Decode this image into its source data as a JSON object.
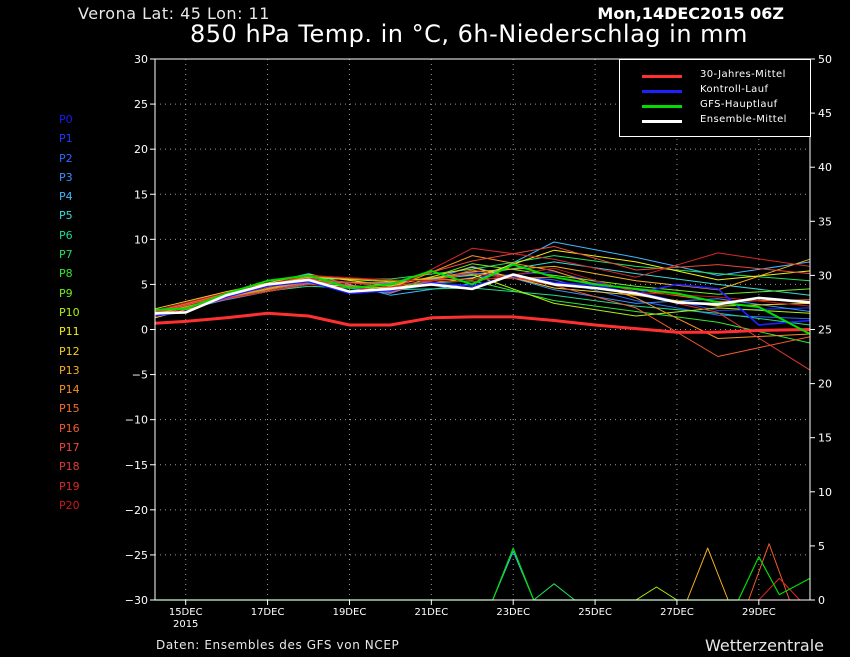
{
  "header": {
    "station": "Verona   Lat: 45 Lon: 11",
    "datestamp": "Mon,14DEC2015 06Z",
    "title": "850 hPa Temp. in °C, 6h-Niederschlag in mm"
  },
  "footer": {
    "source": "Daten: Ensembles des GFS von NCEP",
    "brand": "Wetterzentrale"
  },
  "members": [
    {
      "label": "P0",
      "color": "#1a1aff"
    },
    {
      "label": "P1",
      "color": "#1f3dff"
    },
    {
      "label": "P2",
      "color": "#2a6aff"
    },
    {
      "label": "P3",
      "color": "#3a90ff"
    },
    {
      "label": "P4",
      "color": "#40b8ff"
    },
    {
      "label": "P5",
      "color": "#3ad8d8"
    },
    {
      "label": "P6",
      "color": "#24d890"
    },
    {
      "label": "P7",
      "color": "#22e060"
    },
    {
      "label": "P8",
      "color": "#30e830"
    },
    {
      "label": "P9",
      "color": "#70ee20"
    },
    {
      "label": "P10",
      "color": "#b0f010"
    },
    {
      "label": "P11",
      "color": "#f0f010"
    },
    {
      "label": "P12",
      "color": "#f5d020"
    },
    {
      "label": "P13",
      "color": "#f5b020"
    },
    {
      "label": "P14",
      "color": "#f59020"
    },
    {
      "label": "P15",
      "color": "#f57028"
    },
    {
      "label": "P16",
      "color": "#f05a30"
    },
    {
      "label": "P17",
      "color": "#e84838"
    },
    {
      "label": "P18",
      "color": "#e03838"
    },
    {
      "label": "P19",
      "color": "#d82828"
    },
    {
      "label": "P20",
      "color": "#c81818"
    }
  ],
  "legend": [
    {
      "label": "30-Jahres-Mittel",
      "color": "#ff3030"
    },
    {
      "label": "Kontroll-Lauf",
      "color": "#2020ff"
    },
    {
      "label": "GFS-Hauptlauf",
      "color": "#00dd00"
    },
    {
      "label": "Ensemble-Mittel",
      "color": "#ffffff"
    }
  ],
  "chart_data": {
    "type": "line",
    "y_left": {
      "min": -30,
      "max": 30,
      "ticks": [
        30,
        25,
        20,
        15,
        10,
        5,
        0,
        -5,
        -10,
        -15,
        -20,
        -25,
        -30
      ]
    },
    "y_right": {
      "min": 0,
      "max": 50,
      "ticks": [
        50,
        45,
        40,
        35,
        30,
        25,
        20,
        15,
        10,
        5,
        0
      ]
    },
    "x_ticks": [
      {
        "label": "15DEC",
        "sub": "2015",
        "day": 15
      },
      {
        "label": "17DEC",
        "day": 17
      },
      {
        "label": "19DEC",
        "day": 19
      },
      {
        "label": "21DEC",
        "day": 21
      },
      {
        "label": "23DEC",
        "day": 23
      },
      {
        "label": "25DEC",
        "day": 25
      },
      {
        "label": "27DEC",
        "day": 27
      },
      {
        "label": "29DEC",
        "day": 29
      }
    ],
    "x_range_days": [
      14.25,
      30.25
    ],
    "grid": true,
    "legend_position": "top-right",
    "temperature": {
      "climate_mean": [
        [
          14.25,
          0.7
        ],
        [
          15,
          0.9
        ],
        [
          16,
          1.3
        ],
        [
          17,
          1.8
        ],
        [
          18,
          1.5
        ],
        [
          19,
          0.5
        ],
        [
          20,
          0.5
        ],
        [
          21,
          1.3
        ],
        [
          22,
          1.4
        ],
        [
          23,
          1.4
        ],
        [
          24,
          1.0
        ],
        [
          25,
          0.5
        ],
        [
          26,
          0.1
        ],
        [
          27,
          -0.3
        ],
        [
          28,
          -0.3
        ],
        [
          29,
          -0.1
        ],
        [
          30.25,
          0.0
        ]
      ],
      "ensemble_mean": [
        [
          14.25,
          1.8
        ],
        [
          15,
          1.9
        ],
        [
          16,
          3.8
        ],
        [
          17,
          5.0
        ],
        [
          18,
          5.5
        ],
        [
          19,
          4.2
        ],
        [
          20,
          4.5
        ],
        [
          21,
          5.0
        ],
        [
          22,
          4.5
        ],
        [
          23,
          6.1
        ],
        [
          24,
          5.0
        ],
        [
          25,
          4.6
        ],
        [
          26,
          4.0
        ],
        [
          27,
          3.0
        ],
        [
          28,
          2.8
        ],
        [
          29,
          3.5
        ],
        [
          30.25,
          3.0
        ]
      ],
      "control_run": [
        [
          14.25,
          1.5
        ],
        [
          15,
          2.0
        ],
        [
          16,
          3.6
        ],
        [
          17,
          4.8
        ],
        [
          18,
          5.3
        ],
        [
          19,
          4.0
        ],
        [
          20,
          4.3
        ],
        [
          21,
          5.2
        ],
        [
          22,
          4.8
        ],
        [
          23,
          6.0
        ],
        [
          24,
          5.2
        ],
        [
          25,
          4.9
        ],
        [
          26,
          4.0
        ],
        [
          27,
          5.0
        ],
        [
          28,
          4.5
        ],
        [
          29,
          0.5
        ],
        [
          30.25,
          1.0
        ]
      ],
      "gfs_main": [
        [
          14.25,
          2.2
        ],
        [
          15,
          2.3
        ],
        [
          16,
          4.0
        ],
        [
          17,
          5.4
        ],
        [
          18,
          6.0
        ],
        [
          19,
          4.6
        ],
        [
          20,
          5.0
        ],
        [
          21,
          6.5
        ],
        [
          22,
          5.0
        ],
        [
          23,
          7.2
        ],
        [
          24,
          5.8
        ],
        [
          25,
          5.0
        ],
        [
          26,
          4.5
        ],
        [
          27,
          4.0
        ],
        [
          28,
          3.0
        ],
        [
          29,
          2.5
        ],
        [
          30.25,
          -0.5
        ]
      ],
      "members": [
        [
          [
            14.25,
            1.6
          ],
          [
            16,
            3.5
          ],
          [
            18,
            5.3
          ],
          [
            20,
            4.2
          ],
          [
            22,
            5.8
          ],
          [
            24,
            6.4
          ],
          [
            26,
            4.2
          ],
          [
            28,
            2.1
          ],
          [
            30.25,
            2.4
          ]
        ],
        [
          [
            14.25,
            1.9
          ],
          [
            16,
            3.9
          ],
          [
            18,
            5.7
          ],
          [
            20,
            4.7
          ],
          [
            22,
            6.3
          ],
          [
            24,
            5.5
          ],
          [
            26,
            3.2
          ],
          [
            28,
            1.6
          ],
          [
            30.25,
            1.2
          ]
        ],
        [
          [
            14.25,
            1.4
          ],
          [
            16,
            3.3
          ],
          [
            18,
            5.1
          ],
          [
            20,
            4.0
          ],
          [
            22,
            7.0
          ],
          [
            24,
            4.4
          ],
          [
            26,
            2.9
          ],
          [
            28,
            3.4
          ],
          [
            30.25,
            2.0
          ]
        ],
        [
          [
            14.25,
            2.1
          ],
          [
            16,
            4.1
          ],
          [
            18,
            6.2
          ],
          [
            20,
            3.8
          ],
          [
            22,
            5.1
          ],
          [
            24,
            9.7
          ],
          [
            26,
            8.0
          ],
          [
            28,
            6.0
          ],
          [
            30.25,
            7.5
          ]
        ],
        [
          [
            14.25,
            1.7
          ],
          [
            16,
            3.6
          ],
          [
            18,
            5.2
          ],
          [
            20,
            5.2
          ],
          [
            22,
            6.0
          ],
          [
            24,
            7.5
          ],
          [
            26,
            6.2
          ],
          [
            28,
            5.0
          ],
          [
            30.25,
            3.8
          ]
        ],
        [
          [
            14.25,
            1.5
          ],
          [
            16,
            3.7
          ],
          [
            18,
            4.8
          ],
          [
            20,
            4.4
          ],
          [
            22,
            4.6
          ],
          [
            24,
            3.8
          ],
          [
            26,
            2.6
          ],
          [
            28,
            1.8
          ],
          [
            30.25,
            0.5
          ]
        ],
        [
          [
            14.25,
            2.0
          ],
          [
            16,
            3.8
          ],
          [
            18,
            5.6
          ],
          [
            20,
            5.6
          ],
          [
            22,
            6.7
          ],
          [
            24,
            8.2
          ],
          [
            26,
            7.0
          ],
          [
            28,
            6.2
          ],
          [
            30.25,
            5.4
          ]
        ],
        [
          [
            14.25,
            1.8
          ],
          [
            16,
            4.0
          ],
          [
            18,
            6.0
          ],
          [
            20,
            4.9
          ],
          [
            22,
            5.4
          ],
          [
            24,
            3.2
          ],
          [
            26,
            2.0
          ],
          [
            28,
            0.8
          ],
          [
            30.25,
            -1.5
          ]
        ],
        [
          [
            14.25,
            1.6
          ],
          [
            16,
            3.5
          ],
          [
            18,
            5.4
          ],
          [
            20,
            4.3
          ],
          [
            22,
            7.3
          ],
          [
            24,
            6.0
          ],
          [
            26,
            4.8
          ],
          [
            28,
            3.9
          ],
          [
            30.25,
            4.5
          ]
        ],
        [
          [
            14.25,
            1.9
          ],
          [
            16,
            3.9
          ],
          [
            18,
            5.8
          ],
          [
            20,
            5.3
          ],
          [
            22,
            6.1
          ],
          [
            24,
            2.9
          ],
          [
            26,
            1.5
          ],
          [
            28,
            2.4
          ],
          [
            30.25,
            1.8
          ]
        ],
        [
          [
            14.25,
            1.3
          ],
          [
            16,
            3.4
          ],
          [
            18,
            5.0
          ],
          [
            20,
            4.6
          ],
          [
            22,
            5.7
          ],
          [
            24,
            8.8
          ],
          [
            26,
            7.5
          ],
          [
            28,
            5.5
          ],
          [
            30.25,
            6.5
          ]
        ],
        [
          [
            14.25,
            2.3
          ],
          [
            16,
            4.2
          ],
          [
            18,
            6.1
          ],
          [
            20,
            4.8
          ],
          [
            22,
            6.9
          ],
          [
            24,
            4.6
          ],
          [
            26,
            3.8
          ],
          [
            28,
            2.6
          ],
          [
            30.25,
            2.9
          ]
        ],
        [
          [
            14.25,
            1.7
          ],
          [
            16,
            3.6
          ],
          [
            18,
            5.5
          ],
          [
            20,
            5.0
          ],
          [
            22,
            6.4
          ],
          [
            24,
            7.0
          ],
          [
            26,
            5.4
          ],
          [
            28,
            4.4
          ],
          [
            30.25,
            7.8
          ]
        ],
        [
          [
            14.25,
            1.5
          ],
          [
            16,
            3.7
          ],
          [
            18,
            5.3
          ],
          [
            20,
            4.5
          ],
          [
            22,
            8.2
          ],
          [
            24,
            6.5
          ],
          [
            26,
            3.5
          ],
          [
            28,
            -1.0
          ],
          [
            30.25,
            -0.5
          ]
        ],
        [
          [
            14.25,
            2.0
          ],
          [
            16,
            4.0
          ],
          [
            18,
            5.9
          ],
          [
            20,
            5.4
          ],
          [
            22,
            5.6
          ],
          [
            24,
            5.8
          ],
          [
            26,
            4.4
          ],
          [
            28,
            3.1
          ],
          [
            30.25,
            3.3
          ]
        ],
        [
          [
            14.25,
            1.8
          ],
          [
            16,
            3.8
          ],
          [
            18,
            5.6
          ],
          [
            20,
            4.1
          ],
          [
            22,
            6.6
          ],
          [
            24,
            4.9
          ],
          [
            26,
            2.4
          ],
          [
            28,
            -3.0
          ],
          [
            30.25,
            -0.8
          ]
        ],
        [
          [
            14.25,
            1.6
          ],
          [
            16,
            3.5
          ],
          [
            18,
            5.2
          ],
          [
            20,
            5.1
          ],
          [
            22,
            7.6
          ],
          [
            24,
            9.2
          ],
          [
            26,
            6.6
          ],
          [
            28,
            7.2
          ],
          [
            30.25,
            6.2
          ]
        ],
        [
          [
            14.25,
            1.9
          ],
          [
            16,
            3.9
          ],
          [
            18,
            5.7
          ],
          [
            20,
            4.7
          ],
          [
            22,
            6.2
          ],
          [
            24,
            5.2
          ],
          [
            26,
            3.9
          ],
          [
            28,
            1.9
          ],
          [
            30.25,
            -4.5
          ]
        ],
        [
          [
            14.25,
            1.4
          ],
          [
            16,
            3.4
          ],
          [
            18,
            5.0
          ],
          [
            20,
            4.3
          ],
          [
            22,
            9.0
          ],
          [
            24,
            7.8
          ],
          [
            26,
            5.8
          ],
          [
            28,
            8.5
          ],
          [
            30.25,
            7.0
          ]
        ],
        [
          [
            14.25,
            2.1
          ],
          [
            16,
            4.1
          ],
          [
            18,
            6.0
          ],
          [
            20,
            5.5
          ],
          [
            22,
            5.3
          ],
          [
            24,
            6.8
          ],
          [
            26,
            4.1
          ],
          [
            28,
            3.6
          ],
          [
            30.25,
            2.6
          ]
        ]
      ]
    },
    "precipitation": {
      "gfs_main": [
        [
          14.25,
          0
        ],
        [
          22.5,
          0
        ],
        [
          23,
          4.8
        ],
        [
          23.5,
          0
        ],
        [
          28.5,
          0
        ],
        [
          29,
          4
        ],
        [
          29.5,
          0.5
        ],
        [
          30.25,
          2
        ]
      ],
      "member_peaks": [
        [
          23,
          4.5
        ],
        [
          24,
          1.5
        ],
        [
          26.5,
          1.2
        ],
        [
          27.75,
          4.8
        ],
        [
          29.25,
          5.2
        ],
        [
          29.5,
          2
        ]
      ]
    }
  }
}
